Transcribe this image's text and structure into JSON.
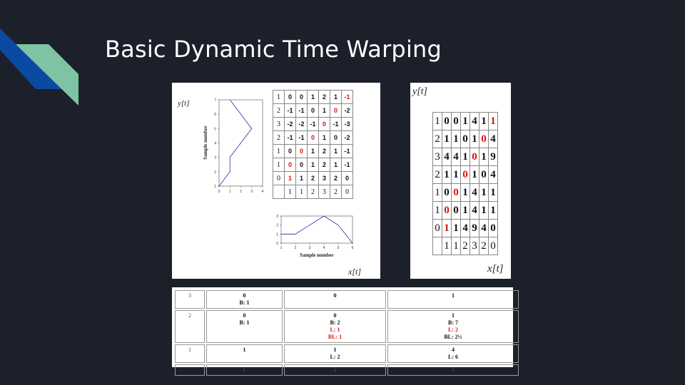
{
  "slide": {
    "title": "Basic Dynamic Time Warping",
    "accent_colors": [
      "#0b4aa2",
      "#7ec4a4"
    ]
  },
  "panel_a": {
    "y_label": "y[t]",
    "x_label": "x[t]",
    "matrix": {
      "rows": [
        {
          "label": "1",
          "cells": [
            "0",
            "0",
            "1",
            "2",
            "1",
            "-1"
          ],
          "red": [
            5
          ]
        },
        {
          "label": "2",
          "cells": [
            "-1",
            "-1",
            "0",
            "1",
            "0",
            "-2"
          ],
          "red": [
            4
          ]
        },
        {
          "label": "3",
          "cells": [
            "-2",
            "-2",
            "-1",
            "0",
            "-1",
            "-3"
          ],
          "red": [
            3
          ]
        },
        {
          "label": "2",
          "cells": [
            "-1",
            "-1",
            "0",
            "1",
            "0",
            "-2"
          ],
          "red": [
            2
          ]
        },
        {
          "label": "1",
          "cells": [
            "0",
            "0",
            "1",
            "2",
            "1",
            "-1"
          ],
          "red": [
            1
          ]
        },
        {
          "label": "1",
          "cells": [
            "0",
            "0",
            "1",
            "2",
            "1",
            "-1"
          ],
          "red": [
            0
          ]
        },
        {
          "label": "0",
          "cells": [
            "1",
            "1",
            "2",
            "3",
            "2",
            "0"
          ],
          "red": [
            0
          ]
        }
      ],
      "x_row": [
        "",
        "1",
        "1",
        "2",
        "3",
        "2",
        "0"
      ]
    },
    "plot_vertical": {
      "ylabel": "Sample number",
      "x_ticks": [
        "0",
        "1",
        "2",
        "3",
        "4"
      ],
      "y_ticks": [
        "1",
        "2",
        "3",
        "4",
        "5",
        "6",
        "7"
      ],
      "xlim": [
        0,
        4
      ],
      "ylim": [
        1,
        7
      ],
      "points_value_sample": [
        [
          1,
          7
        ],
        [
          2,
          6
        ],
        [
          3,
          5
        ],
        [
          2,
          4
        ],
        [
          1,
          3
        ],
        [
          1,
          2
        ],
        [
          0,
          1
        ]
      ]
    },
    "plot_horizontal": {
      "xlabel": "Sample number",
      "x_ticks": [
        "1",
        "2",
        "3",
        "4",
        "5",
        "6"
      ],
      "y_ticks": [
        "0",
        "1",
        "2",
        "3"
      ],
      "xlim": [
        1,
        6
      ],
      "ylim": [
        0,
        3
      ],
      "points_sample_value": [
        [
          1,
          1
        ],
        [
          2,
          1
        ],
        [
          3,
          2
        ],
        [
          4,
          3
        ],
        [
          5,
          2
        ],
        [
          6,
          0
        ]
      ]
    }
  },
  "panel_b": {
    "y_label": "y[t]",
    "x_label": "x[t]",
    "matrix": {
      "rows": [
        {
          "label": "1",
          "cells": [
            "0",
            "0",
            "1",
            "4",
            "1",
            "1"
          ],
          "red": [
            5
          ]
        },
        {
          "label": "2",
          "cells": [
            "1",
            "1",
            "0",
            "1",
            "0",
            "4"
          ],
          "red": [
            4
          ]
        },
        {
          "label": "3",
          "cells": [
            "4",
            "4",
            "1",
            "0",
            "1",
            "9"
          ],
          "red": [
            3
          ]
        },
        {
          "label": "2",
          "cells": [
            "1",
            "1",
            "0",
            "1",
            "0",
            "4"
          ],
          "red": [
            2
          ]
        },
        {
          "label": "1",
          "cells": [
            "0",
            "0",
            "1",
            "4",
            "1",
            "1"
          ],
          "red": [
            1
          ]
        },
        {
          "label": "1",
          "cells": [
            "0",
            "0",
            "1",
            "4",
            "1",
            "1"
          ],
          "red": [
            0
          ]
        },
        {
          "label": "0",
          "cells": [
            "1",
            "1",
            "4",
            "9",
            "4",
            "0"
          ],
          "red": [
            0
          ]
        }
      ],
      "x_row": [
        "",
        "1",
        "1",
        "2",
        "3",
        "2",
        "0"
      ]
    }
  },
  "panel_c": {
    "rows": [
      {
        "label": "3",
        "cells": [
          {
            "value": "0",
            "lines": [
              {
                "t": "B: 1",
                "c": "blk"
              }
            ]
          },
          {
            "value": "0",
            "lines": []
          },
          {
            "value": "1",
            "lines": []
          }
        ]
      },
      {
        "label": "2",
        "cells": [
          {
            "value": "0",
            "lines": [
              {
                "t": "B: 1",
                "c": "blk"
              }
            ]
          },
          {
            "value": "0",
            "lines": [
              {
                "t": "B: 2",
                "c": "blk"
              },
              {
                "t": "L: 1",
                "c": "red"
              },
              {
                "t": "BL: 1",
                "c": "red"
              }
            ]
          },
          {
            "value": "1",
            "lines": [
              {
                "t": "B: 7",
                "c": "blk"
              },
              {
                "t": "L: 2",
                "c": "red"
              },
              {
                "t": "BL: 2½",
                "c": "blk"
              }
            ]
          }
        ]
      },
      {
        "label": "1",
        "cells": [
          {
            "value": "1",
            "lines": []
          },
          {
            "value": "1",
            "lines": [
              {
                "t": "L: 2",
                "c": "blk"
              }
            ]
          },
          {
            "value": "4",
            "lines": [
              {
                "t": "L: 6",
                "c": "blk"
              }
            ]
          }
        ]
      }
    ],
    "footer": [
      "",
      "1",
      "2",
      "3"
    ]
  }
}
